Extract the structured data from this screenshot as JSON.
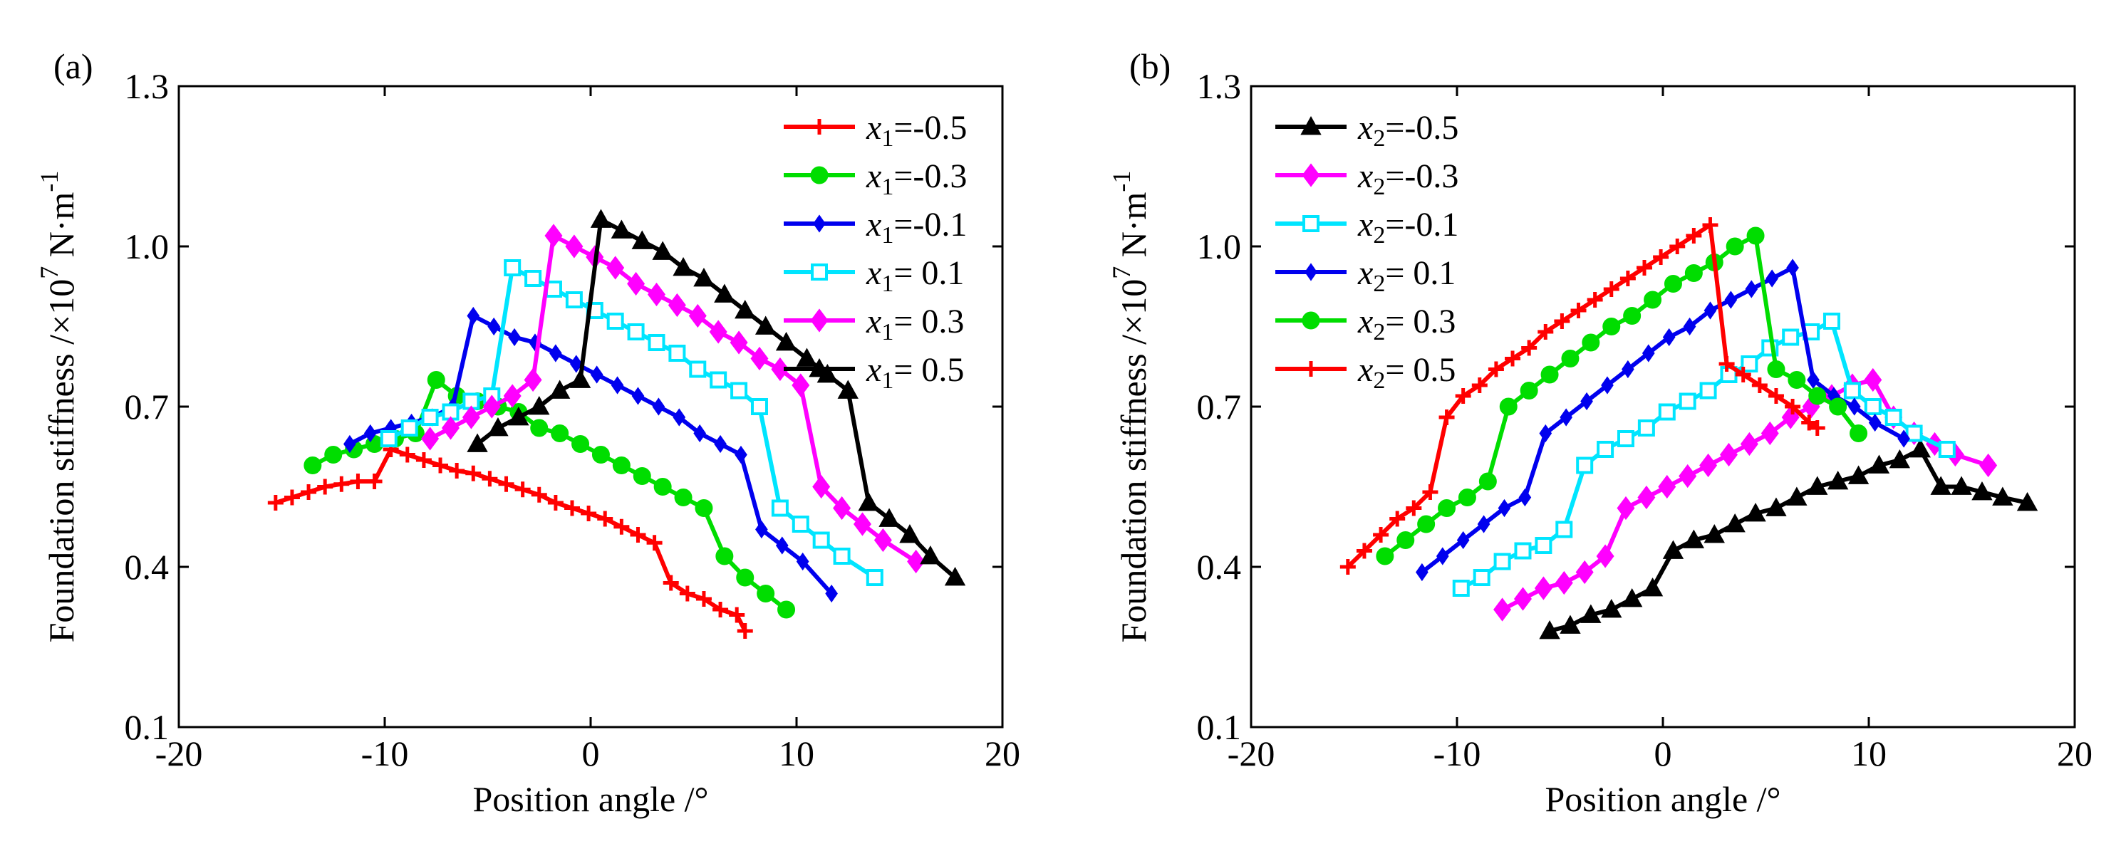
{
  "chart_data": [
    {
      "type": "line",
      "panel_label": "(a)",
      "xlabel": "Position angle /°",
      "ylabel": "Foundation stiffness /×10",
      "ylabel_exponent": "7",
      "ylabel_unit": " N·m",
      "ylabel_unit_exponent": "-1",
      "xlim": [
        -20,
        20
      ],
      "ylim": [
        0.1,
        1.3
      ],
      "xticks": [
        -20,
        -10,
        0,
        10,
        20
      ],
      "xtick_labels": [
        "-20",
        "-10",
        "0",
        "10",
        "20"
      ],
      "yticks": [
        0.1,
        0.4,
        0.7,
        1.0,
        1.3
      ],
      "ytick_labels": [
        "0.1",
        "0.4",
        "0.7",
        "1.0",
        "1.3"
      ],
      "legend_position": "top-right",
      "grid": false,
      "series": [
        {
          "name": "x1=-0.5",
          "var": "x",
          "sub": "1",
          "val": "=-0.5",
          "color": "#ff0000",
          "marker": "plus",
          "x": [
            -15.3,
            -14.5,
            -13.7,
            -12.9,
            -12.1,
            -11.3,
            -10.5,
            -9.7,
            -8.9,
            -8.1,
            -7.3,
            -6.5,
            -5.7,
            -4.9,
            -4.1,
            -3.3,
            -2.5,
            -1.7,
            -0.9,
            -0.1,
            0.7,
            1.5,
            2.3,
            3.1,
            3.9,
            4.7,
            5.5,
            6.3,
            7.1,
            7.5
          ],
          "y": [
            0.52,
            0.53,
            0.54,
            0.55,
            0.555,
            0.56,
            0.56,
            0.62,
            0.61,
            0.6,
            0.59,
            0.58,
            0.575,
            0.565,
            0.555,
            0.545,
            0.535,
            0.52,
            0.51,
            0.5,
            0.49,
            0.475,
            0.46,
            0.445,
            0.37,
            0.35,
            0.34,
            0.32,
            0.31,
            0.28
          ]
        },
        {
          "name": "x1=-0.3",
          "var": "x",
          "sub": "1",
          "val": "=-0.3",
          "color": "#00dd00",
          "marker": "circle",
          "x": [
            -13.5,
            -12.5,
            -11.5,
            -10.5,
            -9.5,
            -8.5,
            -7.5,
            -6.5,
            -5.5,
            -4.5,
            -3.5,
            -2.5,
            -1.5,
            -0.5,
            0.5,
            1.5,
            2.5,
            3.5,
            4.5,
            5.5,
            6.5,
            7.5,
            8.5,
            9.5
          ],
          "y": [
            0.59,
            0.61,
            0.62,
            0.63,
            0.64,
            0.65,
            0.75,
            0.72,
            0.71,
            0.7,
            0.69,
            0.66,
            0.65,
            0.63,
            0.61,
            0.59,
            0.57,
            0.55,
            0.53,
            0.51,
            0.42,
            0.38,
            0.35,
            0.32
          ]
        },
        {
          "name": "x1=-0.1",
          "var": "x",
          "sub": "1",
          "val": "=-0.1",
          "color": "#0000ee",
          "marker": "diamond-small",
          "x": [
            -11.7,
            -10.7,
            -9.7,
            -8.7,
            -7.7,
            -6.7,
            -5.7,
            -4.7,
            -3.7,
            -2.7,
            -1.7,
            -0.7,
            0.3,
            1.3,
            2.3,
            3.3,
            4.3,
            5.3,
            6.3,
            7.3,
            8.3,
            9.3,
            10.3,
            11.7
          ],
          "y": [
            0.63,
            0.65,
            0.66,
            0.67,
            0.68,
            0.7,
            0.87,
            0.85,
            0.83,
            0.82,
            0.8,
            0.78,
            0.76,
            0.74,
            0.72,
            0.7,
            0.68,
            0.65,
            0.63,
            0.61,
            0.47,
            0.44,
            0.41,
            0.35
          ]
        },
        {
          "name": "x1= 0.1",
          "var": "x",
          "sub": "1",
          "val": "= 0.1",
          "color": "#00e5ff",
          "marker": "square",
          "x": [
            -9.8,
            -8.8,
            -7.8,
            -6.8,
            -5.8,
            -4.8,
            -3.8,
            -2.8,
            -1.8,
            -0.8,
            0.2,
            1.2,
            2.2,
            3.2,
            4.2,
            5.2,
            6.2,
            7.2,
            8.2,
            9.2,
            10.2,
            11.2,
            12.2,
            13.8
          ],
          "y": [
            0.64,
            0.66,
            0.68,
            0.69,
            0.71,
            0.72,
            0.96,
            0.94,
            0.92,
            0.9,
            0.88,
            0.86,
            0.84,
            0.82,
            0.8,
            0.77,
            0.75,
            0.73,
            0.7,
            0.51,
            0.48,
            0.45,
            0.42,
            0.38
          ]
        },
        {
          "name": "x1= 0.3",
          "var": "x",
          "sub": "1",
          "val": "= 0.3",
          "color": "#ff00ff",
          "marker": "diamond",
          "x": [
            -7.8,
            -6.8,
            -5.8,
            -4.8,
            -3.8,
            -2.8,
            -1.8,
            -0.8,
            0.2,
            1.2,
            2.2,
            3.2,
            4.2,
            5.2,
            6.2,
            7.2,
            8.2,
            9.2,
            10.2,
            11.2,
            12.2,
            13.2,
            14.2,
            15.8
          ],
          "y": [
            0.64,
            0.66,
            0.68,
            0.7,
            0.72,
            0.75,
            1.02,
            1.0,
            0.98,
            0.96,
            0.93,
            0.91,
            0.89,
            0.87,
            0.84,
            0.82,
            0.79,
            0.77,
            0.74,
            0.55,
            0.51,
            0.48,
            0.45,
            0.41
          ]
        },
        {
          "name": "x1= 0.5",
          "var": "x",
          "sub": "1",
          "val": "= 0.5",
          "color": "#000000",
          "marker": "triangle",
          "x": [
            -5.5,
            -4.5,
            -3.5,
            -2.5,
            -1.5,
            -0.5,
            0.5,
            1.5,
            2.5,
            3.5,
            4.5,
            5.5,
            6.5,
            7.5,
            8.5,
            9.5,
            10.5,
            11.5,
            12.5,
            13.5,
            14.5,
            15.5,
            16.5,
            17.7
          ],
          "y": [
            0.63,
            0.66,
            0.68,
            0.7,
            0.73,
            0.75,
            1.05,
            1.03,
            1.01,
            0.99,
            0.96,
            0.94,
            0.91,
            0.88,
            0.85,
            0.82,
            0.79,
            0.76,
            0.73,
            0.52,
            0.49,
            0.46,
            0.42,
            0.38
          ]
        }
      ]
    },
    {
      "type": "line",
      "panel_label": "(b)",
      "xlabel": "Position angle /°",
      "ylabel": "Foundation stiffness /×10",
      "ylabel_exponent": "7",
      "ylabel_unit": " N·m",
      "ylabel_unit_exponent": "-1",
      "xlim": [
        -20,
        20
      ],
      "ylim": [
        0.1,
        1.3
      ],
      "xticks": [
        -20,
        -10,
        0,
        10,
        20
      ],
      "xtick_labels": [
        "-20",
        "-10",
        "0",
        "10",
        "20"
      ],
      "yticks": [
        0.1,
        0.4,
        0.7,
        1.0,
        1.3
      ],
      "ytick_labels": [
        "0.1",
        "0.4",
        "0.7",
        "1.0",
        "1.3"
      ],
      "legend_position": "top-left",
      "grid": false,
      "series": [
        {
          "name": "x2=-0.5",
          "var": "x",
          "sub": "2",
          "val": "=-0.5",
          "color": "#000000",
          "marker": "triangle",
          "x": [
            -5.5,
            -4.5,
            -3.5,
            -2.5,
            -1.5,
            -0.5,
            0.5,
            1.5,
            2.5,
            3.5,
            4.5,
            5.5,
            6.5,
            7.5,
            8.5,
            9.5,
            10.5,
            11.5,
            12.5,
            13.5,
            14.5,
            15.5,
            16.5,
            17.7
          ],
          "y": [
            0.28,
            0.29,
            0.31,
            0.32,
            0.34,
            0.36,
            0.43,
            0.45,
            0.46,
            0.48,
            0.5,
            0.51,
            0.53,
            0.55,
            0.56,
            0.57,
            0.59,
            0.6,
            0.62,
            0.55,
            0.55,
            0.54,
            0.53,
            0.52
          ]
        },
        {
          "name": "x2=-0.3",
          "var": "x",
          "sub": "2",
          "val": "=-0.3",
          "color": "#ff00ff",
          "marker": "diamond",
          "x": [
            -7.8,
            -6.8,
            -5.8,
            -4.8,
            -3.8,
            -2.8,
            -1.8,
            -0.8,
            0.2,
            1.2,
            2.2,
            3.2,
            4.2,
            5.2,
            6.2,
            7.2,
            8.2,
            9.2,
            10.2,
            11.2,
            12.2,
            13.2,
            14.2,
            15.8
          ],
          "y": [
            0.32,
            0.34,
            0.36,
            0.37,
            0.39,
            0.42,
            0.51,
            0.53,
            0.55,
            0.57,
            0.59,
            0.61,
            0.63,
            0.65,
            0.68,
            0.7,
            0.72,
            0.74,
            0.75,
            0.68,
            0.65,
            0.63,
            0.61,
            0.59
          ]
        },
        {
          "name": "x2=-0.1",
          "var": "x",
          "sub": "2",
          "val": "=-0.1",
          "color": "#00e5ff",
          "marker": "square",
          "x": [
            -9.8,
            -8.8,
            -7.8,
            -6.8,
            -5.8,
            -4.8,
            -3.8,
            -2.8,
            -1.8,
            -0.8,
            0.2,
            1.2,
            2.2,
            3.2,
            4.2,
            5.2,
            6.2,
            7.2,
            8.2,
            9.2,
            10.2,
            11.2,
            12.2,
            13.8
          ],
          "y": [
            0.36,
            0.38,
            0.41,
            0.43,
            0.44,
            0.47,
            0.59,
            0.62,
            0.64,
            0.66,
            0.69,
            0.71,
            0.73,
            0.76,
            0.78,
            0.81,
            0.83,
            0.84,
            0.86,
            0.73,
            0.7,
            0.68,
            0.65,
            0.62
          ]
        },
        {
          "name": "x2= 0.1",
          "var": "x",
          "sub": "2",
          "val": "= 0.1",
          "color": "#0000ee",
          "marker": "diamond-small",
          "x": [
            -11.7,
            -10.7,
            -9.7,
            -8.7,
            -7.7,
            -6.7,
            -5.7,
            -4.7,
            -3.7,
            -2.7,
            -1.7,
            -0.7,
            0.3,
            1.3,
            2.3,
            3.3,
            4.3,
            5.3,
            6.3,
            7.3,
            8.3,
            9.3,
            10.3,
            11.7
          ],
          "y": [
            0.39,
            0.42,
            0.45,
            0.48,
            0.51,
            0.53,
            0.65,
            0.68,
            0.71,
            0.74,
            0.77,
            0.8,
            0.83,
            0.85,
            0.88,
            0.9,
            0.92,
            0.94,
            0.96,
            0.75,
            0.72,
            0.7,
            0.67,
            0.64
          ]
        },
        {
          "name": "x2= 0.3",
          "var": "x",
          "sub": "2",
          "val": "= 0.3",
          "color": "#00dd00",
          "marker": "circle",
          "x": [
            -13.5,
            -12.5,
            -11.5,
            -10.5,
            -9.5,
            -8.5,
            -7.5,
            -6.5,
            -5.5,
            -4.5,
            -3.5,
            -2.5,
            -1.5,
            -0.5,
            0.5,
            1.5,
            2.5,
            3.5,
            4.5,
            5.5,
            6.5,
            7.5,
            8.5,
            9.5
          ],
          "y": [
            0.42,
            0.45,
            0.48,
            0.51,
            0.53,
            0.56,
            0.7,
            0.73,
            0.76,
            0.79,
            0.82,
            0.85,
            0.87,
            0.9,
            0.93,
            0.95,
            0.97,
            1.0,
            1.02,
            0.77,
            0.75,
            0.72,
            0.7,
            0.65
          ]
        },
        {
          "name": "x2= 0.5",
          "var": "x",
          "sub": "2",
          "val": "= 0.5",
          "color": "#ff0000",
          "marker": "plus",
          "x": [
            -15.3,
            -14.5,
            -13.7,
            -12.9,
            -12.1,
            -11.3,
            -10.5,
            -9.7,
            -8.9,
            -8.1,
            -7.3,
            -6.5,
            -5.7,
            -4.9,
            -4.1,
            -3.3,
            -2.5,
            -1.7,
            -0.9,
            -0.1,
            0.7,
            1.5,
            2.3,
            3.1,
            3.9,
            4.7,
            5.5,
            6.3,
            7.1,
            7.5
          ],
          "y": [
            0.4,
            0.43,
            0.46,
            0.49,
            0.51,
            0.54,
            0.68,
            0.72,
            0.74,
            0.77,
            0.79,
            0.81,
            0.84,
            0.86,
            0.88,
            0.9,
            0.92,
            0.94,
            0.96,
            0.98,
            1.0,
            1.02,
            1.04,
            0.78,
            0.76,
            0.74,
            0.72,
            0.7,
            0.67,
            0.66
          ]
        }
      ]
    }
  ]
}
